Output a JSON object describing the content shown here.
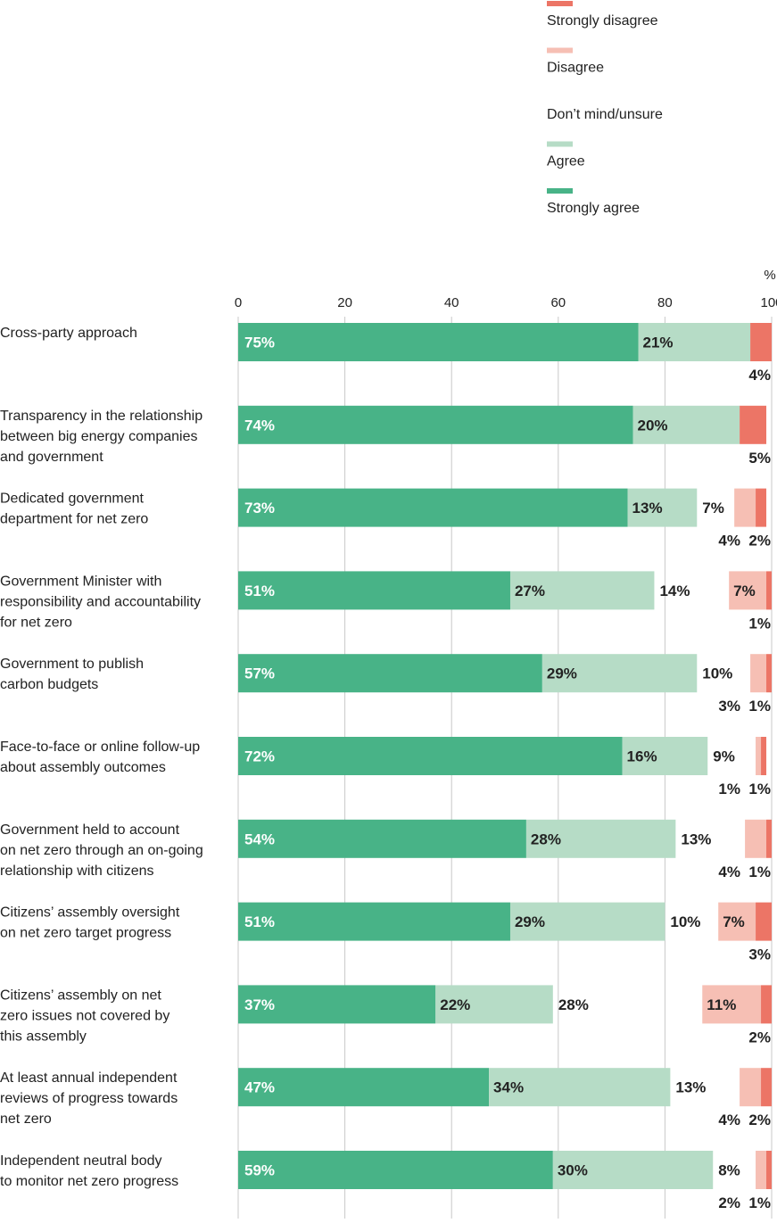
{
  "chart_data": {
    "type": "bar",
    "orientation": "horizontal",
    "stacked": true,
    "unit_label": "%",
    "xlim": [
      0,
      100
    ],
    "xticks": [
      0,
      20,
      40,
      60,
      80,
      100
    ],
    "grid": true,
    "legend_position": "top-right",
    "legend": [
      {
        "name": "Strongly disagree",
        "color": "#ec7566",
        "swatch": true
      },
      {
        "name": "Disagree",
        "color": "#f6bfb4",
        "swatch": true
      },
      {
        "name": "Don’t mind/unsure",
        "color": "#ffffff",
        "swatch": false
      },
      {
        "name": "Agree",
        "color": "#b6dcc6",
        "swatch": true
      },
      {
        "name": "Strongly agree",
        "color": "#48b387",
        "swatch": true
      }
    ],
    "categories": [
      "Cross-party approach",
      "Transparency in the relationship\nbetween big energy companies\nand government",
      "Dedicated government\ndepartment for net zero",
      "Government Minister with\nresponsibility and accountability\nfor net zero",
      "Government to publish\ncarbon budgets",
      "Face-to-face or online follow-up\nabout assembly outcomes",
      "Government held to account\non net zero through an on-going\nrelationship with citizens",
      "Citizens’ assembly oversight\non net zero target progress",
      "Citizens’ assembly on net\nzero issues not covered by\nthis assembly",
      "At least annual independent\nreviews of progress towards\nnet zero",
      "Independent neutral body\nto monitor net zero progress"
    ],
    "series": [
      {
        "name": "Strongly agree",
        "color": "#48b387",
        "values": [
          75,
          74,
          73,
          51,
          57,
          72,
          54,
          51,
          37,
          47,
          59
        ]
      },
      {
        "name": "Agree",
        "color": "#b6dcc6",
        "values": [
          21,
          20,
          13,
          27,
          29,
          16,
          28,
          29,
          22,
          34,
          30
        ]
      },
      {
        "name": "Don’t mind/unsure",
        "color": "#ffffff",
        "values": [
          0,
          0,
          7,
          14,
          10,
          9,
          13,
          10,
          28,
          13,
          8
        ]
      },
      {
        "name": "Disagree",
        "color": "#f6bfb4",
        "values": [
          0,
          0,
          4,
          7,
          3,
          1,
          4,
          7,
          11,
          4,
          2
        ]
      },
      {
        "name": "Strongly disagree",
        "color": "#ec7566",
        "values": [
          4,
          5,
          2,
          1,
          1,
          1,
          1,
          3,
          2,
          2,
          1
        ]
      }
    ],
    "bar_labels": [
      [
        "75%",
        "21%",
        "",
        "",
        "4%"
      ],
      [
        "74%",
        "20%",
        "",
        "",
        "5%"
      ],
      [
        "73%",
        "13%",
        "7%",
        "4%",
        "2%"
      ],
      [
        "51%",
        "27%",
        "14%",
        "7%",
        "1%"
      ],
      [
        "57%",
        "29%",
        "10%",
        "3%",
        "1%"
      ],
      [
        "72%",
        "16%",
        "9%",
        "1%",
        "1%"
      ],
      [
        "54%",
        "28%",
        "13%",
        "4%",
        "1%"
      ],
      [
        "51%",
        "29%",
        "10%",
        "7%",
        "3%"
      ],
      [
        "37%",
        "22%",
        "28%",
        "11%",
        "2%"
      ],
      [
        "47%",
        "34%",
        "13%",
        "4%",
        "2%"
      ],
      [
        "59%",
        "30%",
        "8%",
        "2%",
        "1%"
      ]
    ]
  }
}
